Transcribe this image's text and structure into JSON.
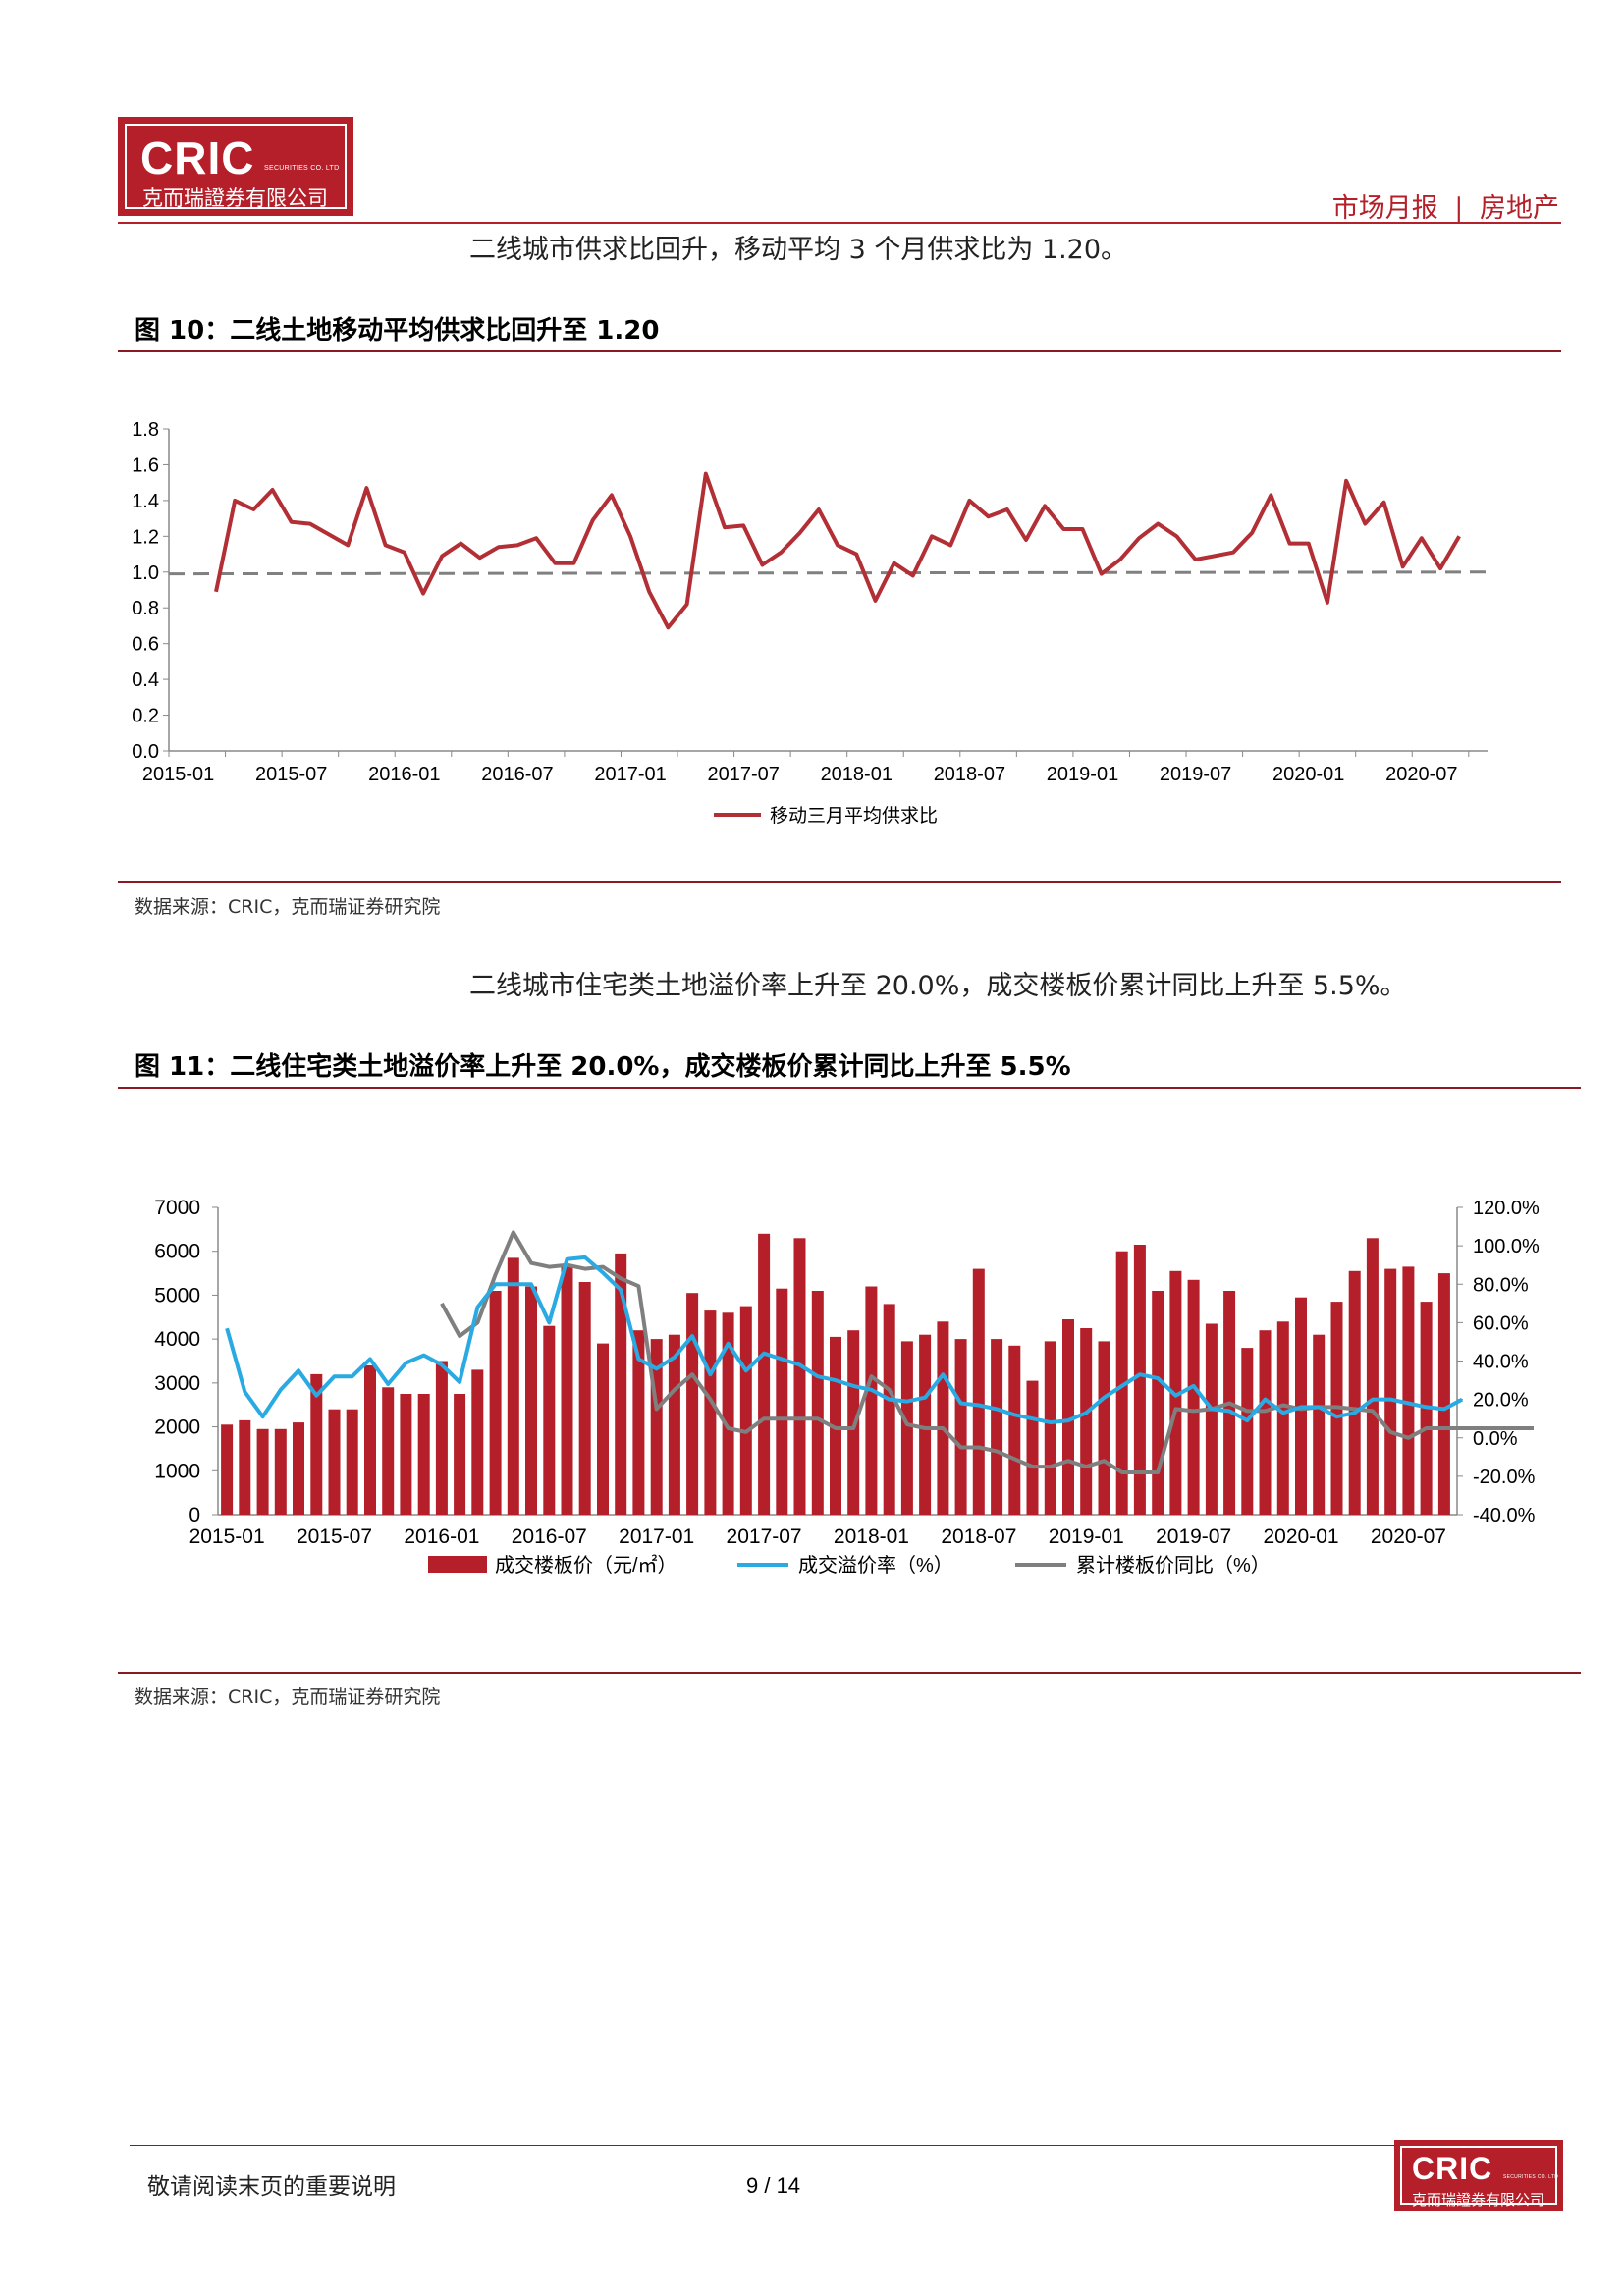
{
  "header": {
    "logo_main": "CRIC",
    "logo_small": "SECURITIES CO. LTD",
    "logo_cn": "克而瑞證券有限公司",
    "report_type": "市场月报",
    "separator": "|",
    "sector": "房地产"
  },
  "colors": {
    "accent": "#b51f2a",
    "series_red": "#b22f35",
    "series_blue": "#2aaae2",
    "series_gray": "#7f7f7f"
  },
  "para1": "二线城市供求比回升，移动平均 3 个月供求比为 1.20。",
  "fig10_title": "图 10：二线土地移动平均供求比回升至 1.20",
  "source1": "数据来源：CRIC，克而瑞证券研究院",
  "para2": "二线城市住宅类土地溢价率上升至 20.0%，成交楼板价累计同比上升至 5.5%。",
  "fig11_title": "图 11：二线住宅类土地溢价率上升至 20.0%，成交楼板价累计同比上升至 5.5%",
  "source2": "数据来源：CRIC，克而瑞证券研究院",
  "footer": {
    "note": "敬请阅读末页的重要说明",
    "page": "9 / 14"
  },
  "chart_data": [
    {
      "type": "line",
      "ylim": [
        0,
        1.8
      ],
      "yticks": [
        "0.0",
        "0.2",
        "0.4",
        "0.6",
        "0.8",
        "1.0",
        "1.2",
        "1.4",
        "1.6",
        "1.8"
      ],
      "xticks": [
        "2015-01",
        "2015-07",
        "2016-01",
        "2016-07",
        "2017-01",
        "2017-07",
        "2018-01",
        "2018-07",
        "2019-01",
        "2019-07",
        "2020-01",
        "2020-07"
      ],
      "x_start": "2015-01",
      "series": [
        {
          "name": "移动三月平均供求比",
          "start": "2015-03",
          "values": [
            0.89,
            1.4,
            1.35,
            1.46,
            1.28,
            1.27,
            1.21,
            1.15,
            1.47,
            1.15,
            1.11,
            0.88,
            1.09,
            1.16,
            1.08,
            1.14,
            1.15,
            1.19,
            1.05,
            1.05,
            1.29,
            1.43,
            1.2,
            0.89,
            0.69,
            0.82,
            1.55,
            1.25,
            1.26,
            1.04,
            1.11,
            1.22,
            1.35,
            1.15,
            1.1,
            0.84,
            1.05,
            0.98,
            1.2,
            1.15,
            1.4,
            1.31,
            1.35,
            1.18,
            1.37,
            1.24,
            1.24,
            0.99,
            1.07,
            1.19,
            1.27,
            1.2,
            1.07,
            1.09,
            1.11,
            1.22,
            1.43,
            1.16,
            1.16,
            0.83,
            1.51,
            1.27,
            1.39,
            1.03,
            1.19,
            1.02,
            1.2
          ]
        }
      ],
      "reference": {
        "start_value": 0.99,
        "end_value": 1.0
      },
      "legend": "bottom"
    },
    {
      "type": "bar",
      "ylim": [
        0,
        7000
      ],
      "y2lim": [
        -40,
        120
      ],
      "yticks": [
        "0",
        "1000",
        "2000",
        "3000",
        "4000",
        "5000",
        "6000",
        "7000"
      ],
      "y2ticks": [
        "-40.0%",
        "-20.0%",
        "0.0%",
        "20.0%",
        "40.0%",
        "60.0%",
        "80.0%",
        "100.0%",
        "120.0%"
      ],
      "xticks": [
        "2015-01",
        "2015-07",
        "2016-01",
        "2016-07",
        "2017-01",
        "2017-07",
        "2018-01",
        "2018-07",
        "2019-01",
        "2019-07",
        "2020-01",
        "2020-07"
      ],
      "x_start": "2015-01",
      "series": [
        {
          "name": "成交楼板价（元/㎡）",
          "axis": "left",
          "kind": "bar",
          "start": "2015-01",
          "values": [
            2050,
            2150,
            1950,
            1950,
            2100,
            3200,
            2400,
            2400,
            3400,
            2900,
            2750,
            2750,
            3500,
            2750,
            3300,
            5100,
            5850,
            5200,
            4300,
            5700,
            5300,
            3900,
            5950,
            4200,
            4000,
            4100,
            5050,
            4650,
            4600,
            4750,
            6400,
            5150,
            6300,
            5100,
            4050,
            4200,
            5200,
            4800,
            3950,
            4100,
            4400,
            4000,
            5600,
            4000,
            3850,
            3050,
            3950,
            4450,
            4250,
            3950,
            6000,
            6150,
            5100,
            5550,
            5350,
            4350,
            5100,
            3800,
            4200,
            4400,
            4950,
            4100,
            4850,
            5550,
            6300,
            5600,
            5650,
            4850,
            5500
          ]
        },
        {
          "name": "成交溢价率（%）",
          "axis": "right",
          "kind": "line",
          "start": "2015-01",
          "values": [
            57,
            24,
            11,
            25,
            35,
            22,
            32,
            32,
            41,
            28,
            39,
            43,
            38,
            29,
            68,
            80,
            80,
            80,
            60,
            93,
            94,
            86,
            77,
            41,
            36,
            42,
            53,
            33,
            49,
            35,
            44,
            41,
            38,
            32,
            30,
            27,
            25,
            20,
            19,
            21,
            33,
            18,
            17,
            15,
            12,
            10,
            8,
            9,
            13,
            21,
            27,
            33,
            31,
            22,
            27,
            15,
            14,
            9,
            20,
            13,
            16,
            16,
            11,
            13,
            20,
            20,
            18,
            16,
            15,
            20
          ]
        },
        {
          "name": "累计楼板价同比（%）",
          "axis": "right",
          "kind": "line",
          "start": "2016-01",
          "values": [
            70,
            53,
            60,
            85,
            107,
            91,
            89,
            90,
            88,
            89,
            83,
            79,
            15,
            25,
            33,
            20,
            5,
            3,
            10,
            10,
            10,
            10,
            5,
            5,
            32,
            25,
            7,
            5,
            5,
            -5,
            -5,
            -7,
            -11,
            -15,
            -15,
            -12,
            -15,
            -12,
            -18,
            -18,
            -18,
            15,
            14,
            15,
            18,
            14,
            14,
            17,
            15,
            16,
            16,
            15,
            14,
            3,
            0,
            5,
            5,
            5,
            5,
            5,
            5,
            5
          ]
        }
      ],
      "legend": "bottom"
    }
  ]
}
